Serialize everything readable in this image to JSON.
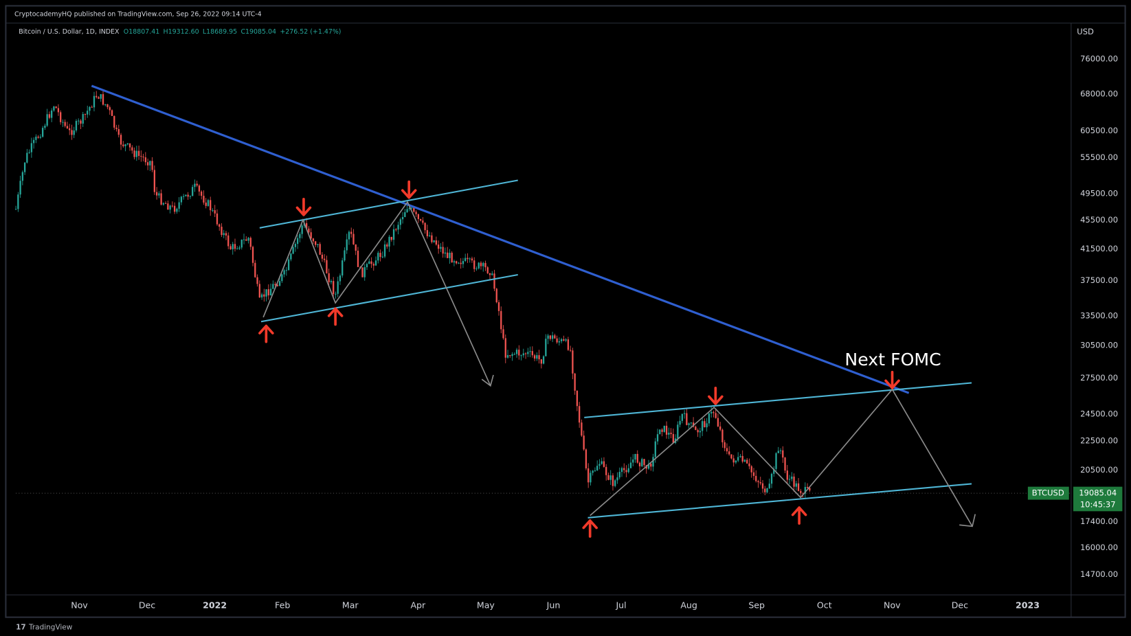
{
  "header": {
    "published": "CryptocademyHQ published on TradingView.com, Sep 26, 2022 09:14 UTC-4",
    "symbol": "Bitcoin / U.S. Dollar, 1D, INDEX",
    "ohlc": [
      "O18807.41",
      "H19312.60",
      "L18689.95",
      "C19085.04",
      "+276.52 (+1.47%)"
    ]
  },
  "price_axis": {
    "currency": "USD",
    "labels": [
      "76000.00",
      "68000.00",
      "60500.00",
      "55500.00",
      "49500.00",
      "45500.00",
      "41500.00",
      "37500.00",
      "33500.00",
      "30500.00",
      "27500.00",
      "24500.00",
      "22500.00",
      "20500.00",
      "17400.00",
      "16000.00",
      "14700.00"
    ]
  },
  "time_axis": {
    "labels": [
      "Nov",
      "Dec",
      "2022",
      "Feb",
      "Mar",
      "Apr",
      "May",
      "Jun",
      "Jul",
      "Aug",
      "Sep",
      "Oct",
      "Nov",
      "Dec",
      "2023"
    ]
  },
  "last_price": {
    "symbol": "BTCUSD",
    "price": "19085.04",
    "countdown": "10:45:37"
  },
  "annotation": "Next FOMC",
  "footer": "TradingView"
}
